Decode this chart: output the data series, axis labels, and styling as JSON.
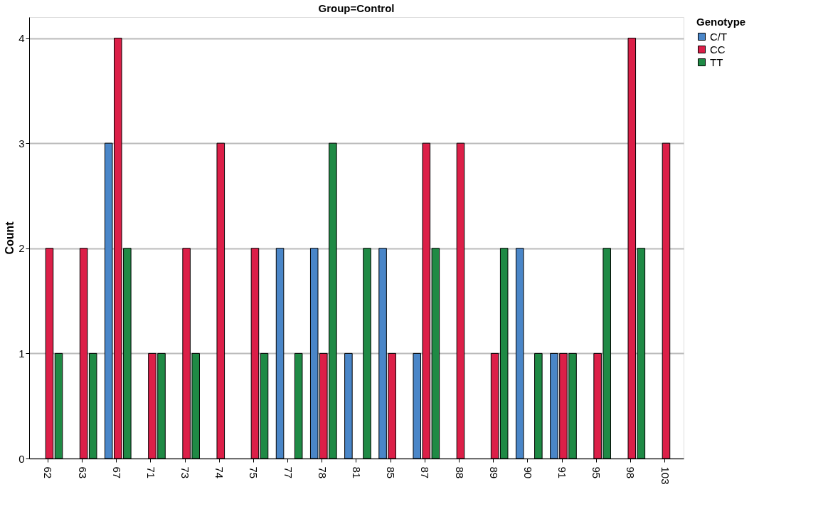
{
  "chart_data": {
    "type": "bar",
    "title": "Group=Control",
    "ylabel": "Count",
    "legend_title": "Genotype",
    "categories": [
      "62",
      "63",
      "67",
      "71",
      "73",
      "74",
      "75",
      "77",
      "78",
      "81",
      "85",
      "87",
      "88",
      "89",
      "90",
      "91",
      "95",
      "98",
      "103"
    ],
    "series": [
      {
        "name": "C/T",
        "color": "#4a86c8",
        "values": [
          null,
          null,
          3,
          null,
          null,
          null,
          null,
          2,
          2,
          1,
          2,
          1,
          null,
          null,
          2,
          1,
          null,
          null,
          null
        ]
      },
      {
        "name": "CC",
        "color": "#dc1f48",
        "values": [
          2,
          2,
          4,
          1,
          2,
          3,
          2,
          null,
          1,
          null,
          1,
          3,
          3,
          1,
          null,
          1,
          1,
          4,
          3
        ]
      },
      {
        "name": "TT",
        "color": "#1f8a45",
        "values": [
          1,
          1,
          2,
          1,
          1,
          null,
          1,
          1,
          3,
          2,
          null,
          2,
          null,
          2,
          1,
          1,
          2,
          2,
          null
        ]
      }
    ],
    "ylim": [
      0,
      4.2
    ],
    "yticks": [
      0,
      1,
      2,
      3,
      4
    ],
    "grid": "y",
    "legend": "top right"
  }
}
